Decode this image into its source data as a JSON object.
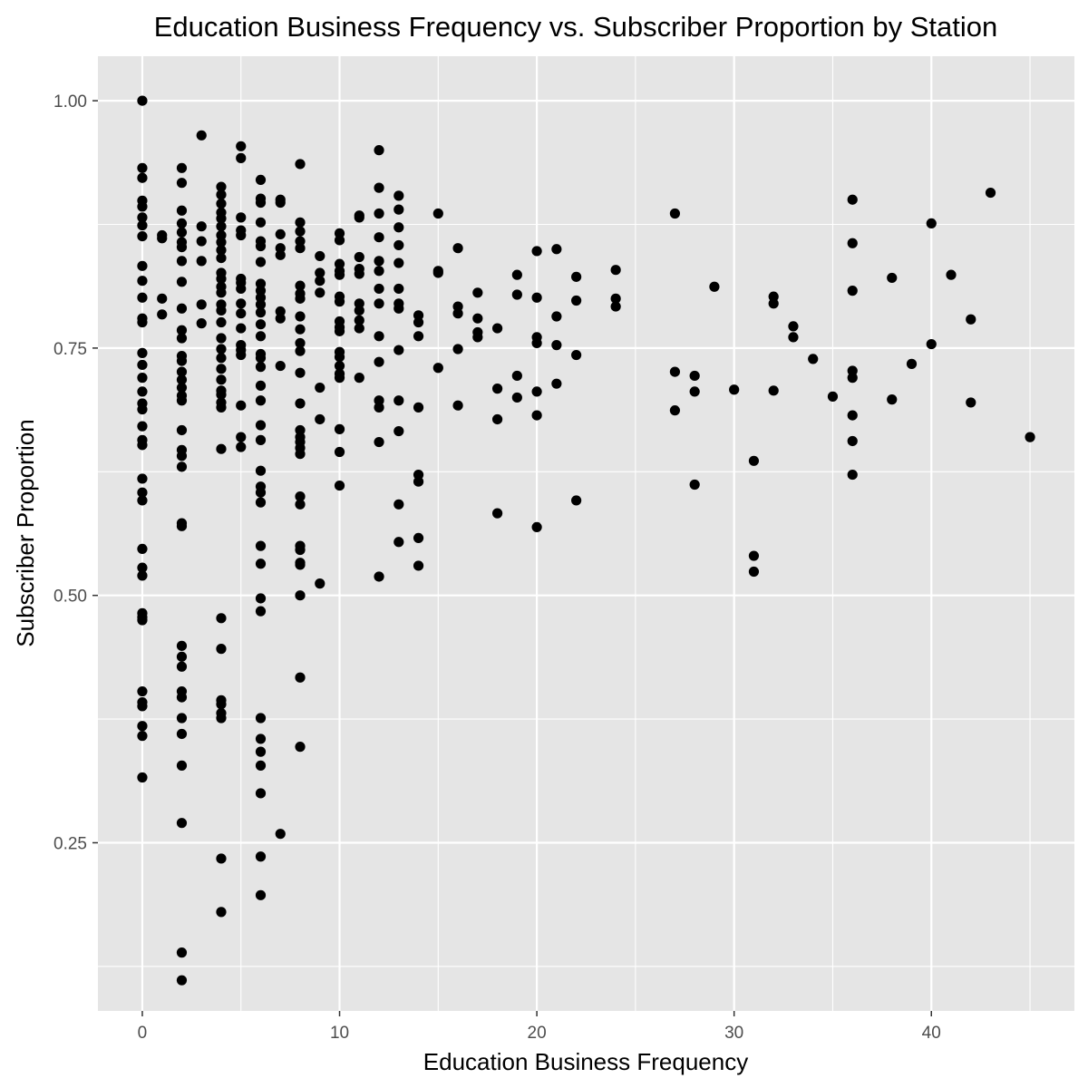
{
  "chart_data": {
    "type": "scatter",
    "title": "Education Business Frequency vs. Subscriber Proportion by Station",
    "xlabel": "Education Business Frequency",
    "ylabel": "Subscriber Proportion",
    "xlim": [
      -2.25,
      47.25
    ],
    "ylim": [
      0.08,
      1.045
    ],
    "x_ticks": [
      0,
      10,
      20,
      30,
      40
    ],
    "x_tick_labels": [
      "0",
      "10",
      "20",
      "30",
      "40"
    ],
    "y_ticks": [
      0.25,
      0.5,
      0.75,
      1.0
    ],
    "y_tick_labels": [
      "0.25",
      "0.50",
      "0.75",
      "1.00"
    ],
    "grid": true,
    "legend": "none",
    "colors": {
      "panel": "#e5e5e5",
      "grid": "#ffffff",
      "point": "#000000",
      "tick_text": "#4d4d4d"
    },
    "points": [
      [
        0,
        1.0
      ],
      [
        0,
        0.932
      ],
      [
        0,
        0.922
      ],
      [
        0,
        0.899
      ],
      [
        0,
        0.893
      ],
      [
        0,
        0.882
      ],
      [
        0,
        0.874
      ],
      [
        0,
        0.863
      ],
      [
        0,
        0.833
      ],
      [
        0,
        0.818
      ],
      [
        0,
        0.801
      ],
      [
        0,
        0.78
      ],
      [
        0,
        0.776
      ],
      [
        0,
        0.745
      ],
      [
        0,
        0.733
      ],
      [
        0,
        0.72
      ],
      [
        0,
        0.706
      ],
      [
        0,
        0.694
      ],
      [
        0,
        0.688
      ],
      [
        0,
        0.671
      ],
      [
        0,
        0.657
      ],
      [
        0,
        0.652
      ],
      [
        0,
        0.618
      ],
      [
        0,
        0.604
      ],
      [
        0,
        0.596
      ],
      [
        0,
        0.547
      ],
      [
        0,
        0.528
      ],
      [
        0,
        0.52
      ],
      [
        0,
        0.482
      ],
      [
        0,
        0.478
      ],
      [
        0,
        0.475
      ],
      [
        0,
        0.403
      ],
      [
        0,
        0.392
      ],
      [
        0,
        0.388
      ],
      [
        0,
        0.368
      ],
      [
        0,
        0.358
      ],
      [
        0,
        0.316
      ],
      [
        1,
        0.864
      ],
      [
        1,
        0.861
      ],
      [
        1,
        0.8
      ],
      [
        1,
        0.784
      ],
      [
        2,
        0.932
      ],
      [
        2,
        0.917
      ],
      [
        2,
        0.889
      ],
      [
        2,
        0.876
      ],
      [
        2,
        0.867
      ],
      [
        2,
        0.857
      ],
      [
        2,
        0.852
      ],
      [
        2,
        0.838
      ],
      [
        2,
        0.817
      ],
      [
        2,
        0.79
      ],
      [
        2,
        0.768
      ],
      [
        2,
        0.76
      ],
      [
        2,
        0.742
      ],
      [
        2,
        0.737
      ],
      [
        2,
        0.726
      ],
      [
        2,
        0.718
      ],
      [
        2,
        0.71
      ],
      [
        2,
        0.702
      ],
      [
        2,
        0.697
      ],
      [
        2,
        0.667
      ],
      [
        2,
        0.647
      ],
      [
        2,
        0.641
      ],
      [
        2,
        0.63
      ],
      [
        2,
        0.573
      ],
      [
        2,
        0.57
      ],
      [
        2,
        0.449
      ],
      [
        2,
        0.438
      ],
      [
        2,
        0.428
      ],
      [
        2,
        0.403
      ],
      [
        2,
        0.397
      ],
      [
        2,
        0.376
      ],
      [
        2,
        0.36
      ],
      [
        2,
        0.328
      ],
      [
        2,
        0.27
      ],
      [
        2,
        0.139
      ],
      [
        2,
        0.111
      ],
      [
        3,
        0.965
      ],
      [
        3,
        0.873
      ],
      [
        3,
        0.858
      ],
      [
        3,
        0.838
      ],
      [
        3,
        0.794
      ],
      [
        3,
        0.775
      ],
      [
        4,
        0.913
      ],
      [
        4,
        0.905
      ],
      [
        4,
        0.896
      ],
      [
        4,
        0.887
      ],
      [
        4,
        0.881
      ],
      [
        4,
        0.873
      ],
      [
        4,
        0.864
      ],
      [
        4,
        0.857
      ],
      [
        4,
        0.849
      ],
      [
        4,
        0.841
      ],
      [
        4,
        0.826
      ],
      [
        4,
        0.82
      ],
      [
        4,
        0.812
      ],
      [
        4,
        0.806
      ],
      [
        4,
        0.794
      ],
      [
        4,
        0.788
      ],
      [
        4,
        0.776
      ],
      [
        4,
        0.76
      ],
      [
        4,
        0.749
      ],
      [
        4,
        0.74
      ],
      [
        4,
        0.729
      ],
      [
        4,
        0.718
      ],
      [
        4,
        0.707
      ],
      [
        4,
        0.703
      ],
      [
        4,
        0.695
      ],
      [
        4,
        0.69
      ],
      [
        4,
        0.648
      ],
      [
        4,
        0.477
      ],
      [
        4,
        0.446
      ],
      [
        4,
        0.394
      ],
      [
        4,
        0.39
      ],
      [
        4,
        0.381
      ],
      [
        4,
        0.376
      ],
      [
        4,
        0.234
      ],
      [
        4,
        0.18
      ],
      [
        5,
        0.954
      ],
      [
        5,
        0.942
      ],
      [
        5,
        0.882
      ],
      [
        5,
        0.869
      ],
      [
        5,
        0.864
      ],
      [
        5,
        0.82
      ],
      [
        5,
        0.816
      ],
      [
        5,
        0.81
      ],
      [
        5,
        0.795
      ],
      [
        5,
        0.785
      ],
      [
        5,
        0.77
      ],
      [
        5,
        0.753
      ],
      [
        5,
        0.748
      ],
      [
        5,
        0.743
      ],
      [
        5,
        0.692
      ],
      [
        5,
        0.66
      ],
      [
        5,
        0.65
      ],
      [
        6,
        0.92
      ],
      [
        6,
        0.901
      ],
      [
        6,
        0.897
      ],
      [
        6,
        0.877
      ],
      [
        6,
        0.858
      ],
      [
        6,
        0.853
      ],
      [
        6,
        0.837
      ],
      [
        6,
        0.815
      ],
      [
        6,
        0.808
      ],
      [
        6,
        0.801
      ],
      [
        6,
        0.794
      ],
      [
        6,
        0.786
      ],
      [
        6,
        0.774
      ],
      [
        6,
        0.762
      ],
      [
        6,
        0.744
      ],
      [
        6,
        0.74
      ],
      [
        6,
        0.731
      ],
      [
        6,
        0.712
      ],
      [
        6,
        0.697
      ],
      [
        6,
        0.672
      ],
      [
        6,
        0.657
      ],
      [
        6,
        0.626
      ],
      [
        6,
        0.61
      ],
      [
        6,
        0.604
      ],
      [
        6,
        0.594
      ],
      [
        6,
        0.55
      ],
      [
        6,
        0.532
      ],
      [
        6,
        0.497
      ],
      [
        6,
        0.484
      ],
      [
        6,
        0.376
      ],
      [
        6,
        0.355
      ],
      [
        6,
        0.342
      ],
      [
        6,
        0.328
      ],
      [
        6,
        0.3
      ],
      [
        6,
        0.236
      ],
      [
        6,
        0.197
      ],
      [
        7,
        0.9
      ],
      [
        7,
        0.897
      ],
      [
        7,
        0.865
      ],
      [
        7,
        0.851
      ],
      [
        7,
        0.844
      ],
      [
        7,
        0.787
      ],
      [
        7,
        0.78
      ],
      [
        7,
        0.732
      ],
      [
        7,
        0.259
      ],
      [
        8,
        0.936
      ],
      [
        8,
        0.877
      ],
      [
        8,
        0.868
      ],
      [
        8,
        0.858
      ],
      [
        8,
        0.851
      ],
      [
        8,
        0.813
      ],
      [
        8,
        0.805
      ],
      [
        8,
        0.8
      ],
      [
        8,
        0.782
      ],
      [
        8,
        0.769
      ],
      [
        8,
        0.755
      ],
      [
        8,
        0.747
      ],
      [
        8,
        0.725
      ],
      [
        8,
        0.694
      ],
      [
        8,
        0.667
      ],
      [
        8,
        0.66
      ],
      [
        8,
        0.655
      ],
      [
        8,
        0.649
      ],
      [
        8,
        0.643
      ],
      [
        8,
        0.6
      ],
      [
        8,
        0.592
      ],
      [
        8,
        0.55
      ],
      [
        8,
        0.546
      ],
      [
        8,
        0.533
      ],
      [
        8,
        0.531
      ],
      [
        8,
        0.5
      ],
      [
        8,
        0.417
      ],
      [
        8,
        0.347
      ],
      [
        9,
        0.843
      ],
      [
        9,
        0.826
      ],
      [
        9,
        0.818
      ],
      [
        9,
        0.806
      ],
      [
        9,
        0.71
      ],
      [
        9,
        0.678
      ],
      [
        9,
        0.512
      ],
      [
        10,
        0.866
      ],
      [
        10,
        0.859
      ],
      [
        10,
        0.835
      ],
      [
        10,
        0.828
      ],
      [
        10,
        0.824
      ],
      [
        10,
        0.802
      ],
      [
        10,
        0.797
      ],
      [
        10,
        0.777
      ],
      [
        10,
        0.771
      ],
      [
        10,
        0.767
      ],
      [
        10,
        0.746
      ],
      [
        10,
        0.741
      ],
      [
        10,
        0.732
      ],
      [
        10,
        0.72
      ],
      [
        10,
        0.724
      ],
      [
        10,
        0.668
      ],
      [
        10,
        0.645
      ],
      [
        10,
        0.611
      ],
      [
        11,
        0.884
      ],
      [
        11,
        0.882
      ],
      [
        11,
        0.842
      ],
      [
        11,
        0.83
      ],
      [
        11,
        0.825
      ],
      [
        11,
        0.795
      ],
      [
        11,
        0.788
      ],
      [
        11,
        0.778
      ],
      [
        11,
        0.77
      ],
      [
        11,
        0.72
      ],
      [
        12,
        0.95
      ],
      [
        12,
        0.912
      ],
      [
        12,
        0.886
      ],
      [
        12,
        0.862
      ],
      [
        12,
        0.838
      ],
      [
        12,
        0.828
      ],
      [
        12,
        0.81
      ],
      [
        12,
        0.795
      ],
      [
        12,
        0.762
      ],
      [
        12,
        0.736
      ],
      [
        12,
        0.697
      ],
      [
        12,
        0.69
      ],
      [
        12,
        0.655
      ],
      [
        12,
        0.519
      ],
      [
        13,
        0.904
      ],
      [
        13,
        0.89
      ],
      [
        13,
        0.872
      ],
      [
        13,
        0.854
      ],
      [
        13,
        0.836
      ],
      [
        13,
        0.81
      ],
      [
        13,
        0.795
      ],
      [
        13,
        0.79
      ],
      [
        13,
        0.748
      ],
      [
        13,
        0.697
      ],
      [
        13,
        0.666
      ],
      [
        13,
        0.592
      ],
      [
        13,
        0.554
      ],
      [
        14,
        0.783
      ],
      [
        14,
        0.776
      ],
      [
        14,
        0.762
      ],
      [
        14,
        0.69
      ],
      [
        14,
        0.622
      ],
      [
        14,
        0.615
      ],
      [
        14,
        0.558
      ],
      [
        14,
        0.53
      ],
      [
        15,
        0.886
      ],
      [
        15,
        0.828
      ],
      [
        15,
        0.826
      ],
      [
        15,
        0.73
      ],
      [
        16,
        0.851
      ],
      [
        16,
        0.792
      ],
      [
        16,
        0.785
      ],
      [
        16,
        0.749
      ],
      [
        16,
        0.692
      ],
      [
        17,
        0.806
      ],
      [
        17,
        0.78
      ],
      [
        17,
        0.766
      ],
      [
        17,
        0.761
      ],
      [
        18,
        0.77
      ],
      [
        18,
        0.709
      ],
      [
        18,
        0.678
      ],
      [
        18,
        0.583
      ],
      [
        19,
        0.824
      ],
      [
        19,
        0.804
      ],
      [
        19,
        0.722
      ],
      [
        19,
        0.7
      ],
      [
        20,
        0.848
      ],
      [
        20,
        0.801
      ],
      [
        20,
        0.761
      ],
      [
        20,
        0.755
      ],
      [
        20,
        0.706
      ],
      [
        20,
        0.682
      ],
      [
        20,
        0.569
      ],
      [
        21,
        0.85
      ],
      [
        21,
        0.782
      ],
      [
        21,
        0.753
      ],
      [
        21,
        0.714
      ],
      [
        22,
        0.822
      ],
      [
        22,
        0.798
      ],
      [
        22,
        0.743
      ],
      [
        22,
        0.596
      ],
      [
        24,
        0.829
      ],
      [
        24,
        0.8
      ],
      [
        24,
        0.792
      ],
      [
        27,
        0.886
      ],
      [
        27,
        0.726
      ],
      [
        27,
        0.687
      ],
      [
        28,
        0.722
      ],
      [
        28,
        0.706
      ],
      [
        28,
        0.612
      ],
      [
        29,
        0.812
      ],
      [
        30,
        0.708
      ],
      [
        31,
        0.636
      ],
      [
        31,
        0.54
      ],
      [
        31,
        0.524
      ],
      [
        32,
        0.802
      ],
      [
        32,
        0.795
      ],
      [
        32,
        0.707
      ],
      [
        33,
        0.772
      ],
      [
        33,
        0.761
      ],
      [
        34,
        0.739
      ],
      [
        35,
        0.701
      ],
      [
        36,
        0.9
      ],
      [
        36,
        0.856
      ],
      [
        36,
        0.808
      ],
      [
        36,
        0.727
      ],
      [
        36,
        0.72
      ],
      [
        36,
        0.682
      ],
      [
        36,
        0.656
      ],
      [
        36,
        0.622
      ],
      [
        38,
        0.821
      ],
      [
        38,
        0.698
      ],
      [
        39,
        0.734
      ],
      [
        40,
        0.876
      ],
      [
        40,
        0.754
      ],
      [
        41,
        0.824
      ],
      [
        42,
        0.779
      ],
      [
        42,
        0.695
      ],
      [
        43,
        0.907
      ],
      [
        45,
        0.66
      ]
    ]
  }
}
